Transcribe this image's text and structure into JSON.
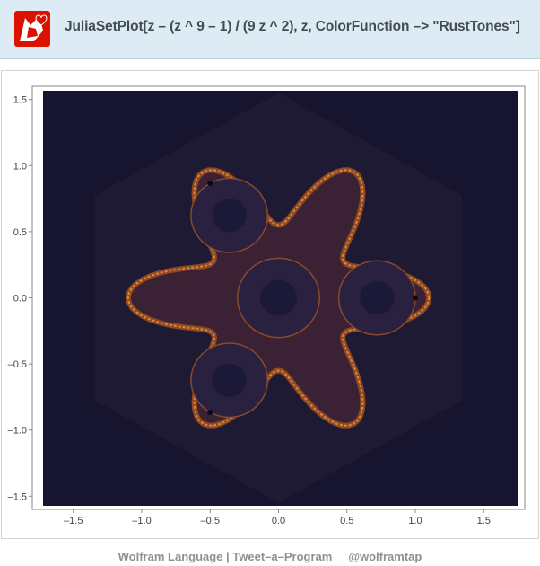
{
  "header": {
    "code": "JuliaSetPlot[z – (z ^ 9 – 1) / (9 z ^ 2), z, ColorFunction –> \"RustTones\"]",
    "logo_icon": "wolfram-wolf-icon",
    "logo_color": "#dd1100"
  },
  "footer": {
    "left": "Wolfram Language | Tweet–a–Program",
    "right": "@wolframtap"
  },
  "chart_data": {
    "type": "heatmap",
    "title": "",
    "xlabel": "",
    "ylabel": "",
    "xlim": [
      -1.8,
      1.8
    ],
    "ylim": [
      -1.6,
      1.6
    ],
    "x_ticks": [
      "–1.5",
      "–1.0",
      "–0.5",
      "0.0",
      "0.5",
      "1.0",
      "1.5"
    ],
    "x_tick_values": [
      -1.5,
      -1.0,
      -0.5,
      0.0,
      0.5,
      1.0,
      1.5
    ],
    "y_ticks": [
      "1.5",
      "1.0",
      "0.5",
      "0.0",
      "–0.5",
      "–1.0",
      "–1.5"
    ],
    "y_tick_values": [
      1.5,
      1.0,
      0.5,
      0.0,
      -0.5,
      -1.0,
      -1.5
    ],
    "colors": {
      "background": "#16142e",
      "fractal_edge": "#e8842a",
      "fractal_mid": "#8a4a28",
      "fractal_dark": "#3a2234"
    },
    "attracting_points": [
      {
        "x": 1.0,
        "y": 0.0
      },
      {
        "x": -0.5,
        "y": 0.866
      },
      {
        "x": -0.5,
        "y": -0.866
      }
    ]
  }
}
